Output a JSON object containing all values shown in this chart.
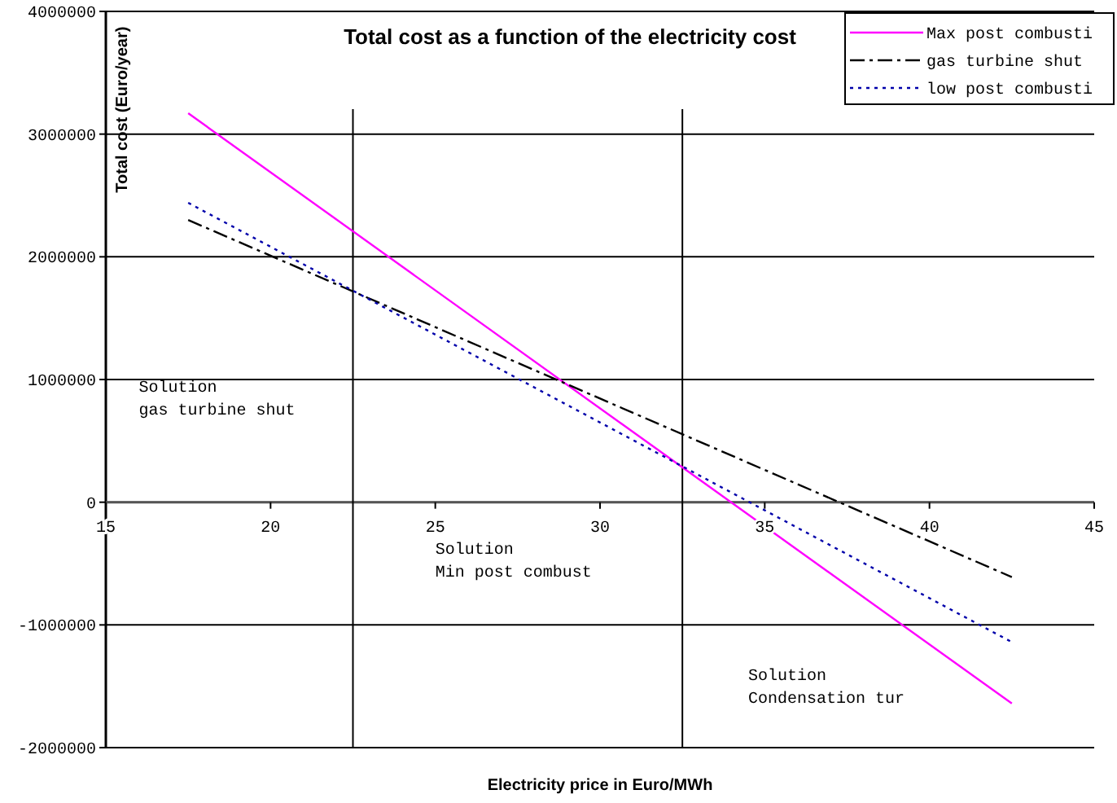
{
  "chart_data": {
    "type": "line",
    "title": "Total cost as a function of the electricity cost",
    "xlabel": "Electricity price in Euro/MWh",
    "ylabel": "Total cost (Euro/year)",
    "xlim": [
      15,
      45
    ],
    "xticks": [
      15,
      20,
      25,
      30,
      35,
      40,
      45
    ],
    "ylim": [
      -2000000,
      4000000
    ],
    "yticks": [
      -2000000,
      -1000000,
      0,
      1000000,
      2000000,
      3000000,
      4000000
    ],
    "grid": "y",
    "legend": "top right",
    "x": [
      17.5,
      42.5
    ],
    "series": [
      {
        "name": "Max post combusti",
        "color": "#ff00ff",
        "line_style": "solid",
        "values": [
          3170000,
          -1640000
        ]
      },
      {
        "name": "gas turbine shut",
        "color": "#000000",
        "line_style": "dashed",
        "values": [
          2300000,
          -610000
        ]
      },
      {
        "name": "low post combusti",
        "color": "#0000aa",
        "line_style": "dotted",
        "values": [
          2440000,
          -1140000
        ]
      }
    ],
    "ref_lines": [
      {
        "axis": "x",
        "value": 22.5,
        "color": "#000000"
      },
      {
        "axis": "x",
        "value": 32.5,
        "color": "#000000"
      }
    ],
    "annotations": [
      "Solution\ngas turbine shut",
      "Solution\nMin post combust",
      "Solution\nCondensation tur"
    ]
  }
}
